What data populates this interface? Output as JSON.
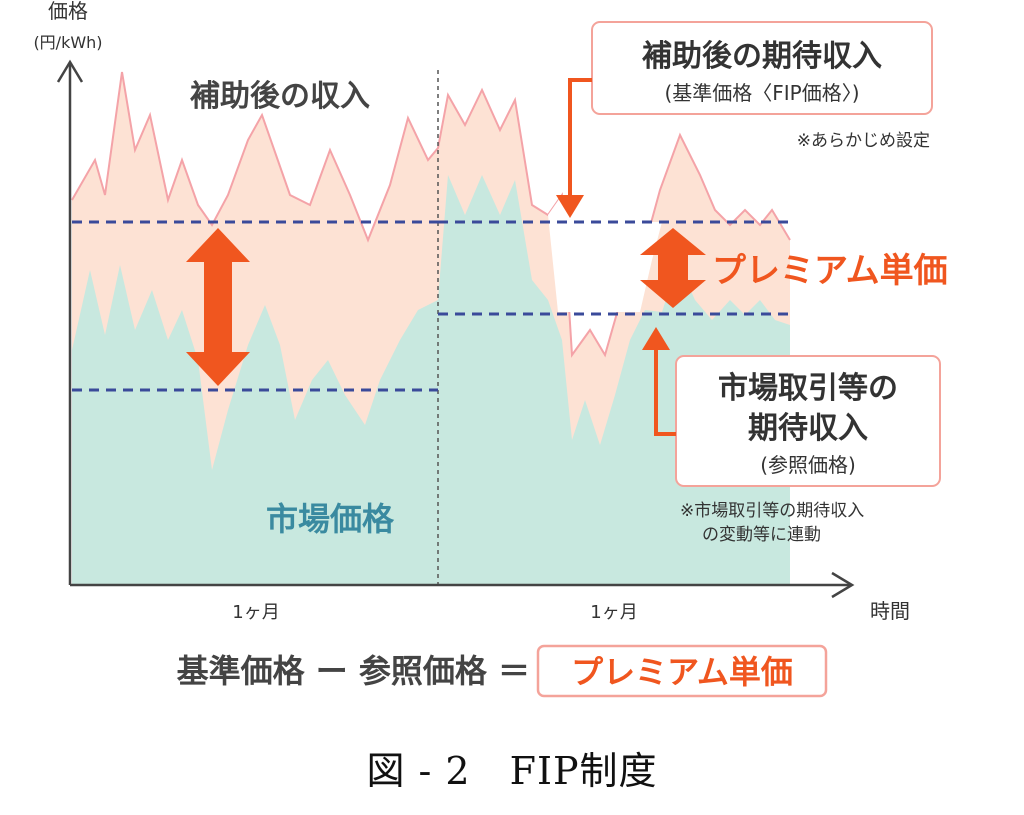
{
  "axis": {
    "y_label": "価格",
    "y_unit": "(円/kWh)",
    "x_label": "時間",
    "period1": "1ヶ月",
    "period2": "1ヶ月"
  },
  "labels": {
    "post_subsidy_income": "補助後の収入",
    "market_price": "市場価格",
    "premium_unit_price": "プレミアム単価"
  },
  "callouts": {
    "expected_income": {
      "title": "補助後の期待収入",
      "sub": "(基準価格〈FIP価格〉)",
      "note": "※あらかじめ設定"
    },
    "market_income": {
      "title_line1": "市場取引等の",
      "title_line2": "期待収入",
      "sub": "(参照価格)",
      "note_line1": "※市場取引等の期待収入",
      "note_line2": "の変動等に連動"
    }
  },
  "formula": {
    "lhs": "基準価格 ー 参照価格 ＝",
    "rhs": "プレミアム単価"
  },
  "caption": "図 - 2　FIP制度",
  "colors": {
    "pink_fill": "#fde2d4",
    "pink_line": "#f4a3a8",
    "teal_fill": "#c8e8df",
    "dash_blue": "#3a4a9a",
    "orange": "#f06a2c",
    "teal_text": "#3a8aa0",
    "axis": "#444444"
  }
}
